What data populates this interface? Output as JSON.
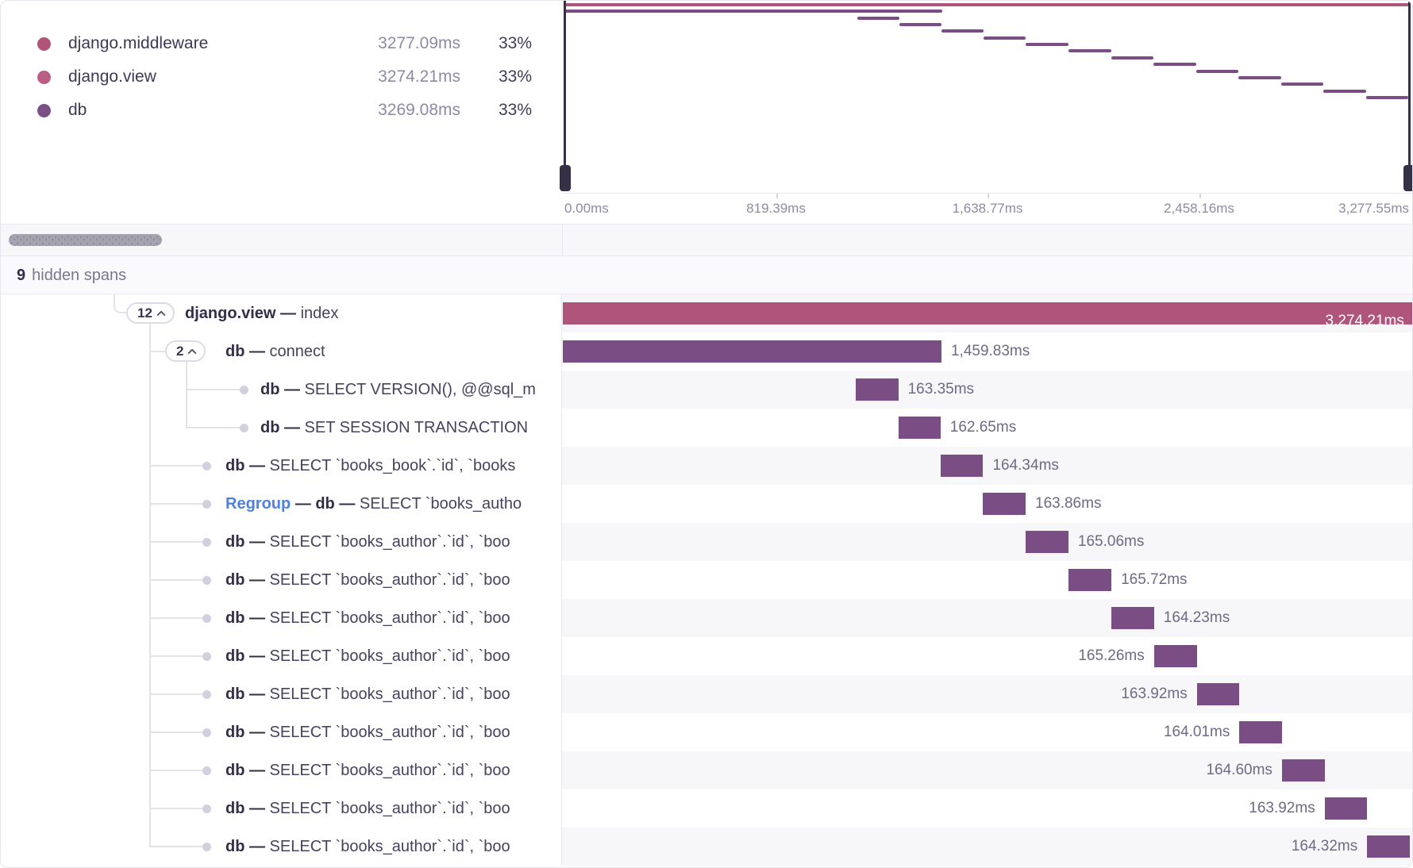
{
  "legend": {
    "items": [
      {
        "name": "django.middleware",
        "value": "3277.09ms",
        "percent": "33%",
        "color": "#b25477"
      },
      {
        "name": "django.view",
        "value": "3274.21ms",
        "percent": "33%",
        "color": "#ba5d87"
      },
      {
        "name": "db",
        "value": "3269.08ms",
        "percent": "33%",
        "color": "#7b5087"
      }
    ]
  },
  "minimap": {
    "total_ms": 3277.55,
    "axis_ticks": [
      "0.00ms",
      "819.39ms",
      "1,638.77ms",
      "2,458.16ms",
      "3,277.55ms"
    ]
  },
  "hidden_spans": {
    "count": "9",
    "label": "hidden spans"
  },
  "colors": {
    "pink": "#af557c",
    "purple": "#7b4d85"
  },
  "spans": [
    {
      "marker": "badge",
      "badge": "12",
      "level": 0,
      "text": [
        [
          "b",
          "django.view — "
        ],
        [
          "n",
          "index"
        ]
      ],
      "start_ms": 2.9,
      "duration_ms": 3274.21,
      "time_label": "3,274.21ms",
      "label_pos": "inside",
      "color": "pink"
    },
    {
      "marker": "badge",
      "badge": "2",
      "level": 1,
      "text": [
        [
          "b",
          "db — "
        ],
        [
          "n",
          "connect"
        ]
      ],
      "start_ms": 2.9,
      "duration_ms": 1459.83,
      "time_label": "1,459.83ms",
      "label_pos": "right",
      "color": "purple"
    },
    {
      "marker": "bullet",
      "level": 2,
      "text": [
        [
          "b",
          "db — "
        ],
        [
          "n",
          "SELECT VERSION(), @@sql_m"
        ]
      ],
      "start_ms": 1133.0,
      "duration_ms": 163.35,
      "time_label": "163.35ms",
      "label_pos": "right",
      "color": "purple"
    },
    {
      "marker": "bullet",
      "level": 2,
      "text": [
        [
          "b",
          "db — "
        ],
        [
          "n",
          "SET SESSION TRANSACTION"
        ]
      ],
      "start_ms": 1296.35,
      "duration_ms": 162.65,
      "time_label": "162.65ms",
      "label_pos": "right",
      "color": "purple"
    },
    {
      "marker": "bullet",
      "level": 1,
      "text": [
        [
          "b",
          "db — "
        ],
        [
          "n",
          "SELECT `books_book`.`id`, `books"
        ]
      ],
      "start_ms": 1459.0,
      "duration_ms": 164.34,
      "time_label": "164.34ms",
      "label_pos": "right",
      "color": "purple"
    },
    {
      "marker": "bullet",
      "level": 1,
      "text": [
        [
          "r",
          "Regroup"
        ],
        [
          "b",
          " — db — "
        ],
        [
          "n",
          "SELECT `books_autho"
        ]
      ],
      "start_ms": 1623.34,
      "duration_ms": 163.86,
      "time_label": "163.86ms",
      "label_pos": "right",
      "color": "purple"
    },
    {
      "marker": "bullet",
      "level": 1,
      "text": [
        [
          "b",
          "db — "
        ],
        [
          "n",
          "SELECT `books_author`.`id`, `boo"
        ]
      ],
      "start_ms": 1787.2,
      "duration_ms": 165.06,
      "time_label": "165.06ms",
      "label_pos": "right",
      "color": "purple"
    },
    {
      "marker": "bullet",
      "level": 1,
      "text": [
        [
          "b",
          "db — "
        ],
        [
          "n",
          "SELECT `books_author`.`id`, `boo"
        ]
      ],
      "start_ms": 1952.26,
      "duration_ms": 165.72,
      "time_label": "165.72ms",
      "label_pos": "right",
      "color": "purple"
    },
    {
      "marker": "bullet",
      "level": 1,
      "text": [
        [
          "b",
          "db — "
        ],
        [
          "n",
          "SELECT `books_author`.`id`, `boo"
        ]
      ],
      "start_ms": 2117.98,
      "duration_ms": 164.23,
      "time_label": "164.23ms",
      "label_pos": "right",
      "color": "purple"
    },
    {
      "marker": "bullet",
      "level": 1,
      "text": [
        [
          "b",
          "db — "
        ],
        [
          "n",
          "SELECT `books_author`.`id`, `boo"
        ]
      ],
      "start_ms": 2282.21,
      "duration_ms": 165.26,
      "time_label": "165.26ms",
      "label_pos": "left",
      "color": "purple"
    },
    {
      "marker": "bullet",
      "level": 1,
      "text": [
        [
          "b",
          "db — "
        ],
        [
          "n",
          "SELECT `books_author`.`id`, `boo"
        ]
      ],
      "start_ms": 2447.47,
      "duration_ms": 163.92,
      "time_label": "163.92ms",
      "label_pos": "left",
      "color": "purple"
    },
    {
      "marker": "bullet",
      "level": 1,
      "text": [
        [
          "b",
          "db — "
        ],
        [
          "n",
          "SELECT `books_author`.`id`, `boo"
        ]
      ],
      "start_ms": 2611.39,
      "duration_ms": 164.01,
      "time_label": "164.01ms",
      "label_pos": "left",
      "color": "purple"
    },
    {
      "marker": "bullet",
      "level": 1,
      "text": [
        [
          "b",
          "db — "
        ],
        [
          "n",
          "SELECT `books_author`.`id`, `boo"
        ]
      ],
      "start_ms": 2775.4,
      "duration_ms": 164.6,
      "time_label": "164.60ms",
      "label_pos": "left",
      "color": "purple"
    },
    {
      "marker": "bullet",
      "level": 1,
      "text": [
        [
          "b",
          "db — "
        ],
        [
          "n",
          "SELECT `books_author`.`id`, `boo"
        ]
      ],
      "start_ms": 2940.0,
      "duration_ms": 163.92,
      "time_label": "163.92ms",
      "label_pos": "left",
      "color": "purple"
    },
    {
      "marker": "bullet",
      "level": 1,
      "text": [
        [
          "b",
          "db — "
        ],
        [
          "n",
          "SELECT `books_author`.`id`, `boo"
        ]
      ],
      "start_ms": 3103.92,
      "duration_ms": 164.32,
      "time_label": "164.32ms",
      "label_pos": "left",
      "color": "purple"
    }
  ]
}
